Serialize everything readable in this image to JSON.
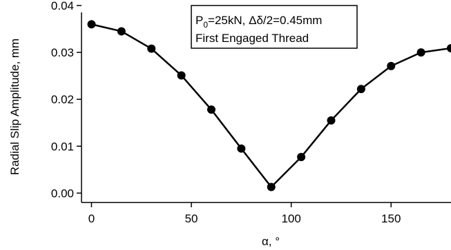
{
  "chart_data": {
    "type": "line",
    "title": "",
    "xlabel": "α, °",
    "ylabel": "Radial Slip Amplitude, mm",
    "xlim": [
      -5,
      180
    ],
    "ylim": [
      -0.002,
      0.04
    ],
    "x_ticks": [
      0,
      50,
      100,
      150
    ],
    "x_tick_labels": [
      "0",
      "50",
      "100",
      "150"
    ],
    "y_ticks": [
      0.0,
      0.01,
      0.02,
      0.03,
      0.04
    ],
    "y_tick_labels": [
      "0.00",
      "0.01",
      "0.02",
      "0.03",
      "0.04"
    ],
    "grid": false,
    "legend": "none",
    "annotation": {
      "line1_prefix": "P",
      "line1_sub": "0",
      "line1_suffix": "=25kN, Δδ/2=0.45mm",
      "line2": "First Engaged Thread"
    },
    "series": [
      {
        "color": "#000000",
        "marker": "filled-circle",
        "x": [
          0,
          15,
          30,
          45,
          60,
          75,
          90,
          105,
          120,
          135,
          150,
          165,
          180
        ],
        "y": [
          0.036,
          0.0345,
          0.0308,
          0.0251,
          0.0178,
          0.0095,
          0.0013,
          0.0077,
          0.0155,
          0.0222,
          0.0271,
          0.03,
          0.0309
        ]
      }
    ]
  }
}
